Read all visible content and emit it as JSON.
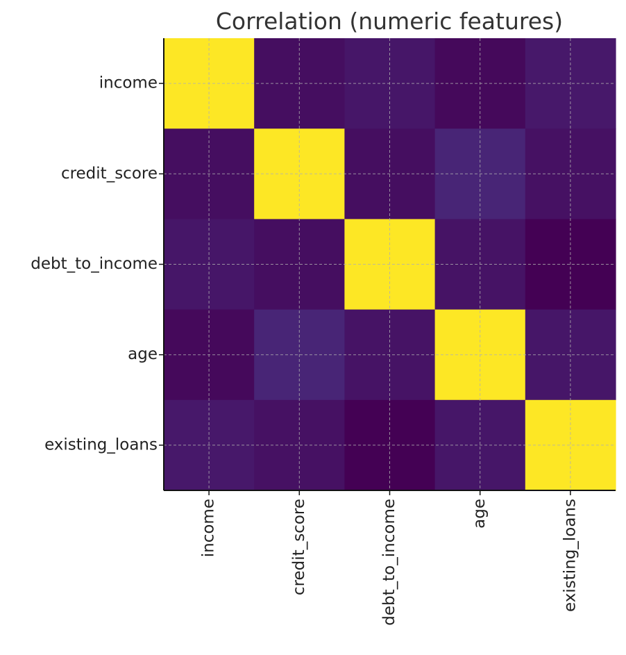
{
  "chart_data": {
    "type": "heatmap",
    "title": "Correlation (numeric features)",
    "xlabel": "",
    "ylabel": "",
    "categories": [
      "income",
      "credit_score",
      "debt_to_income",
      "age",
      "existing_loans"
    ],
    "x_categories": [
      "income",
      "credit_score",
      "debt_to_income",
      "age",
      "existing_loans"
    ],
    "y_categories": [
      "income",
      "credit_score",
      "debt_to_income",
      "age",
      "existing_loans"
    ],
    "matrix": [
      [
        1.0,
        0.01,
        0.04,
        -0.01,
        0.05
      ],
      [
        0.01,
        1.0,
        0.01,
        0.1,
        0.02
      ],
      [
        0.04,
        0.01,
        1.0,
        0.03,
        -0.04
      ],
      [
        -0.01,
        0.1,
        0.03,
        1.0,
        0.04
      ],
      [
        0.05,
        0.02,
        -0.04,
        0.04,
        1.0
      ]
    ],
    "colormap": "viridis",
    "vmin": -0.04,
    "vmax": 1.0,
    "colorbar": false,
    "grid": true,
    "legend": "none"
  }
}
